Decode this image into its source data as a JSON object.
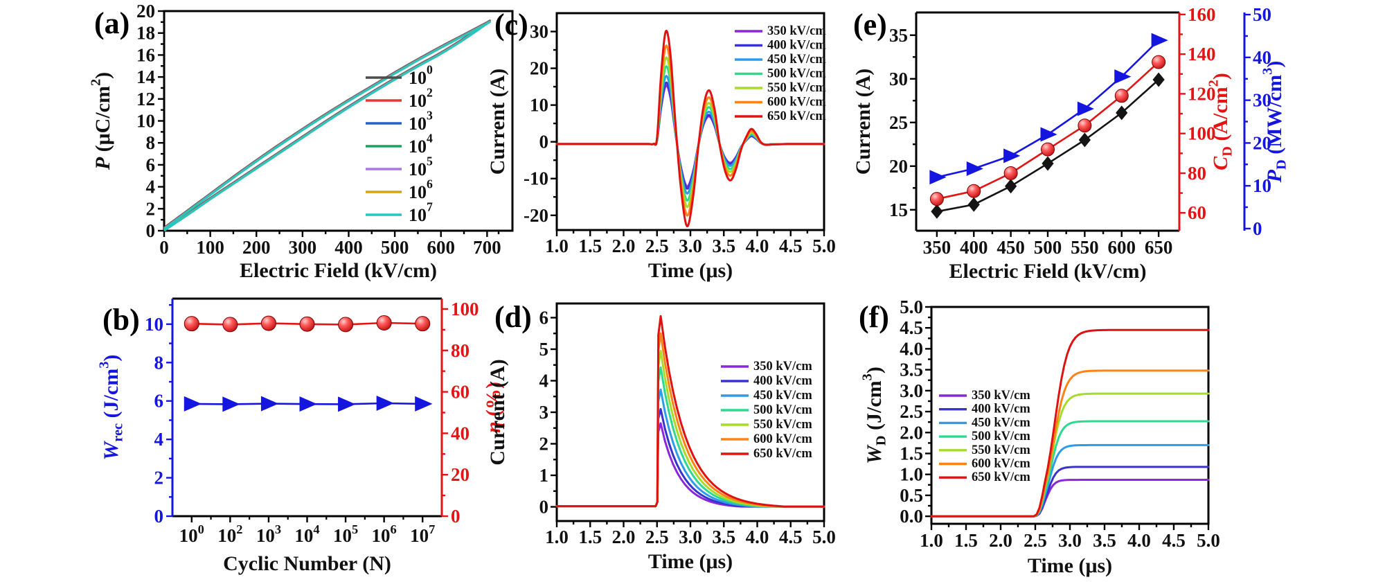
{
  "figure": {
    "description": "Six-panel ferroelectric energy-storage characterization figure",
    "background": "#ffffff",
    "field_legend_labels": [
      "350 kV/cm",
      "400 kV/cm",
      "450 kV/cm",
      "500 kV/cm",
      "550 kV/cm",
      "600 kV/cm",
      "650 kV/cm"
    ],
    "field_colors": [
      "#8C26DD",
      "#3832CE",
      "#2F9BE8",
      "#2BD98F",
      "#A6DC28",
      "#FF8214",
      "#E01111"
    ]
  },
  "chart_data": [
    {
      "panel": "(a)",
      "type": "line",
      "xlabel": "Electric Field (kV/cm)",
      "ylabel_text": "P (μC/cm²)",
      "ylabel_segs": [
        {
          "t": "P",
          "i": true
        },
        {
          "t": " (μC/cm"
        },
        {
          "t": "2",
          "sup": true
        },
        {
          "t": ")"
        }
      ],
      "xlim": [
        0,
        755
      ],
      "ylim": [
        0,
        20
      ],
      "xticks": [
        0,
        100,
        200,
        300,
        400,
        500,
        600,
        700
      ],
      "yticks": [
        0,
        2,
        4,
        6,
        8,
        10,
        12,
        14,
        16,
        18,
        20
      ],
      "legend": {
        "position": "inside-right",
        "items": [
          {
            "label": "10^0",
            "color": "#4D4D4D"
          },
          {
            "label": "10^2",
            "color": "#E8352E"
          },
          {
            "label": "10^3",
            "color": "#2561C9"
          },
          {
            "label": "10^4",
            "color": "#1CA35A"
          },
          {
            "label": "10^5",
            "color": "#A877DF"
          },
          {
            "label": "10^6",
            "color": "#D2A517"
          },
          {
            "label": "10^7",
            "color": "#23C6C0"
          }
        ]
      },
      "series_note": "Unipolar P-E hysteresis loops after 10^0 to 10^7 cycles; all loops overlap",
      "loop_lower": [
        [
          0,
          0
        ],
        [
          50,
          1.4
        ],
        [
          100,
          2.85
        ],
        [
          150,
          4.25
        ],
        [
          200,
          5.65
        ],
        [
          250,
          7.05
        ],
        [
          300,
          8.45
        ],
        [
          350,
          9.85
        ],
        [
          400,
          11.2
        ],
        [
          450,
          12.5
        ],
        [
          500,
          13.75
        ],
        [
          550,
          14.95
        ],
        [
          600,
          16.1
        ],
        [
          650,
          17.4
        ],
        [
          700,
          18.85
        ]
      ],
      "loop_upper": [
        [
          700,
          18.85
        ],
        [
          650,
          17.75
        ],
        [
          600,
          16.65
        ],
        [
          550,
          15.5
        ],
        [
          500,
          14.3
        ],
        [
          450,
          13.05
        ],
        [
          400,
          11.8
        ],
        [
          350,
          10.5
        ],
        [
          300,
          9.15
        ],
        [
          250,
          7.75
        ],
        [
          200,
          6.3
        ],
        [
          150,
          4.8
        ],
        [
          100,
          3.25
        ],
        [
          50,
          1.7
        ],
        [
          0,
          0.15
        ]
      ]
    },
    {
      "panel": "(b)",
      "type": "scatter-line",
      "xlabel": "Cyclic Number (N)",
      "x_tick_labels": [
        "10^0",
        "10^2",
        "10^3",
        "10^4",
        "10^5",
        "10^6",
        "10^7"
      ],
      "left_axis": {
        "label_text": "W_rec (J/cm³)",
        "label_segs": [
          {
            "t": "W",
            "i": true
          },
          {
            "t": "rec",
            "sub": true
          },
          {
            "t": " (J/cm"
          },
          {
            "t": "3",
            "sup": true
          },
          {
            "t": ")"
          }
        ],
        "color": "#1515E0",
        "lim": [
          0,
          11.33
        ],
        "ticks": [
          0,
          2,
          4,
          6,
          8,
          10
        ]
      },
      "right_axis": {
        "label_text": "η (%)",
        "label_segs": [
          {
            "t": "η",
            "i": true
          },
          {
            "t": " (%)"
          }
        ],
        "color": "#E41414",
        "lim": [
          0,
          105
        ],
        "ticks": [
          0,
          20,
          40,
          60,
          80,
          100
        ]
      },
      "series": [
        {
          "name": "W_rec (J/cm³)",
          "axis": "left",
          "marker": "triangle-right",
          "color": "#1515E0",
          "values": [
            5.85,
            5.83,
            5.86,
            5.84,
            5.83,
            5.88,
            5.85
          ]
        },
        {
          "name": "η (%)",
          "axis": "right",
          "marker": "sphere",
          "color": "#E41414",
          "values": [
            92.9,
            92.5,
            93.1,
            92.7,
            92.5,
            93.3,
            92.9
          ]
        }
      ]
    },
    {
      "panel": "(c)",
      "type": "line",
      "xlabel": "Time (μs)",
      "ylabel_text": "Current (A)",
      "xlim": [
        1,
        5
      ],
      "ylim": [
        -24,
        35
      ],
      "xticks": [
        1,
        1.5,
        2,
        2.5,
        3,
        3.5,
        4,
        4.5,
        5
      ],
      "xtick_labels": [
        "1.0",
        "1.5",
        "2.0",
        "2.5",
        "3.0",
        "3.5",
        "4.0",
        "4.5",
        "5.0"
      ],
      "yticks": [
        -20,
        -10,
        0,
        10,
        20,
        30
      ],
      "fields_kvcm": [
        350,
        400,
        450,
        500,
        550,
        600,
        650
      ],
      "legend_labels": [
        "350 kV/cm",
        "400 kV/cm",
        "450 kV/cm",
        "500 kV/cm",
        "550 kV/cm",
        "600 kV/cm",
        "650 kV/cm"
      ],
      "colors": [
        "#8C26DD",
        "#3832CE",
        "#2F9BE8",
        "#2BD98F",
        "#A6DC28",
        "#FF8214",
        "#E01111"
      ],
      "peak_currents_A": [
        15.2,
        16.0,
        17.8,
        20.4,
        22.8,
        26.0,
        30.0
      ],
      "baseline_A": -0.6,
      "series_note": "Underdamped discharge current oscillations starting at 2.5 μs",
      "waveform_650": [
        [
          1,
          -0.6
        ],
        [
          1.5,
          -0.6
        ],
        [
          2,
          -0.6
        ],
        [
          2.35,
          -0.6
        ],
        [
          2.45,
          -0.55
        ],
        [
          2.5,
          1
        ],
        [
          2.56,
          18
        ],
        [
          2.63,
          30
        ],
        [
          2.7,
          24
        ],
        [
          2.78,
          4
        ],
        [
          2.86,
          -13
        ],
        [
          2.95,
          -23
        ],
        [
          3.04,
          -15
        ],
        [
          3.12,
          -1
        ],
        [
          3.2,
          10
        ],
        [
          3.28,
          14
        ],
        [
          3.36,
          9
        ],
        [
          3.44,
          -1
        ],
        [
          3.52,
          -8
        ],
        [
          3.6,
          -10.5
        ],
        [
          3.68,
          -7.5
        ],
        [
          3.76,
          -2
        ],
        [
          3.84,
          1.5
        ],
        [
          3.91,
          3.5
        ],
        [
          3.98,
          2.2
        ],
        [
          4.05,
          0
        ],
        [
          4.12,
          -0.8
        ],
        [
          4.25,
          -0.7
        ],
        [
          4.5,
          -0.6
        ],
        [
          4.75,
          -0.6
        ],
        [
          5,
          -0.6
        ]
      ]
    },
    {
      "panel": "(d)",
      "type": "line",
      "xlabel": "Time (μs)",
      "ylabel_text": "Current (A)",
      "xlim": [
        1,
        5
      ],
      "ylim": [
        -0.45,
        6.45
      ],
      "xticks": [
        1,
        1.5,
        2,
        2.5,
        3,
        3.5,
        4,
        4.5,
        5
      ],
      "xtick_labels": [
        "1.0",
        "1.5",
        "2.0",
        "2.5",
        "3.0",
        "3.5",
        "4.0",
        "4.5",
        "5.0"
      ],
      "yticks": [
        0,
        1,
        2,
        3,
        4,
        5,
        6
      ],
      "fields_kvcm": [
        350,
        400,
        450,
        500,
        550,
        600,
        650
      ],
      "legend_labels": [
        "350 kV/cm",
        "400 kV/cm",
        "450 kV/cm",
        "500 kV/cm",
        "550 kV/cm",
        "600 kV/cm",
        "650 kV/cm"
      ],
      "colors": [
        "#8C26DD",
        "#3832CE",
        "#2F9BE8",
        "#2BD98F",
        "#A6DC28",
        "#FF8214",
        "#E01111"
      ],
      "peak_currents_A": [
        2.65,
        3.1,
        3.72,
        4.42,
        4.95,
        5.5,
        6.05
      ],
      "decay_tau_us": [
        0.285,
        0.3,
        0.315,
        0.33,
        0.345,
        0.36,
        0.375
      ],
      "pulse_start_us": 2.5,
      "series_note": "Overdamped RC discharge current pulses starting at 2.5 μs"
    },
    {
      "panel": "(e)",
      "type": "scatter-line",
      "xlabel": "Electric Field (kV/cm)",
      "x": [
        350,
        400,
        450,
        500,
        550,
        600,
        650
      ],
      "xlim": [
        322,
        678
      ],
      "xticks": [
        350,
        400,
        450,
        500,
        550,
        600,
        650
      ],
      "left_axis": {
        "label_text": "Current (A)",
        "color": "#141414",
        "lim": [
          12.6,
          37.6
        ],
        "ticks": [
          15,
          20,
          25,
          30,
          35
        ]
      },
      "right_axis1": {
        "label_text": "C_D (A/cm²)",
        "label_segs": [
          {
            "t": "C",
            "i": true
          },
          {
            "t": "D",
            "sub": true
          },
          {
            "t": " (A/cm"
          },
          {
            "t": "2",
            "sup": true
          },
          {
            "t": ")"
          }
        ],
        "color": "#E41414",
        "lim": [
          51,
          161
        ],
        "ticks": [
          60,
          80,
          100,
          120,
          140,
          160
        ]
      },
      "right_axis2": {
        "label_text": "P_D (MW/cm³)",
        "label_segs": [
          {
            "t": "P",
            "i": true
          },
          {
            "t": "D",
            "sub": true
          },
          {
            "t": " (MW/cm"
          },
          {
            "t": "3",
            "sup": true
          },
          {
            "t": ")"
          }
        ],
        "color": "#1515E0",
        "lim": [
          -0.5,
          50.5
        ],
        "ticks": [
          0,
          10,
          20,
          30,
          40,
          50
        ]
      },
      "series": [
        {
          "name": "Current (A)",
          "axis": "left",
          "marker": "diamond",
          "color": "#141414",
          "values": [
            14.8,
            15.6,
            17.7,
            20.3,
            23.0,
            26.1,
            29.9
          ]
        },
        {
          "name": "C_D (A/cm²)",
          "axis": "right1",
          "marker": "sphere",
          "color": "#E41414",
          "values": [
            67,
            71,
            80,
            92,
            104,
            119,
            136
          ]
        },
        {
          "name": "P_D (MW/cm³)",
          "axis": "right2",
          "marker": "triangle-right",
          "color": "#1515E0",
          "values": [
            12,
            14,
            17,
            22,
            28,
            35.5,
            44
          ]
        }
      ]
    },
    {
      "panel": "(f)",
      "type": "line",
      "xlabel": "Time (μs)",
      "ylabel_text": "W_D (J/cm³)",
      "ylabel_segs": [
        {
          "t": "W",
          "i": true
        },
        {
          "t": "D",
          "sub": true
        },
        {
          "t": " (J/cm"
        },
        {
          "t": "3",
          "sup": true
        },
        {
          "t": ")"
        }
      ],
      "xlim": [
        1,
        5
      ],
      "ylim": [
        -0.18,
        5
      ],
      "xticks": [
        1,
        1.5,
        2,
        2.5,
        3,
        3.5,
        4,
        4.5,
        5
      ],
      "xtick_labels": [
        "1.0",
        "1.5",
        "2.0",
        "2.5",
        "3.0",
        "3.5",
        "4.0",
        "4.5",
        "5.0"
      ],
      "yticks": [
        0,
        0.5,
        1,
        1.5,
        2,
        2.5,
        3,
        3.5,
        4,
        4.5,
        5
      ],
      "ytick_labels": [
        "0.0",
        "0.5",
        "1.0",
        "1.5",
        "2.0",
        "2.5",
        "3.0",
        "3.5",
        "4.0",
        "4.5",
        "5.0"
      ],
      "fields_kvcm": [
        350,
        400,
        450,
        500,
        550,
        600,
        650
      ],
      "legend_labels": [
        "350 kV/cm",
        "400 kV/cm",
        "450 kV/cm",
        "500 kV/cm",
        "550 kV/cm",
        "600 kV/cm",
        "650 kV/cm"
      ],
      "colors": [
        "#8C26DD",
        "#3832CE",
        "#2F9BE8",
        "#2BD98F",
        "#A6DC28",
        "#FF8214",
        "#E01111"
      ],
      "plateaus_J_cm3": [
        0.87,
        1.18,
        1.7,
        2.27,
        2.93,
        3.48,
        4.45
      ],
      "rise_start_us": 2.5,
      "sigmoid_center": [
        2.66,
        2.68,
        2.7,
        2.72,
        2.74,
        2.76,
        2.78
      ],
      "sigmoid_width": [
        0.055,
        0.062,
        0.068,
        0.075,
        0.082,
        0.088,
        0.095
      ],
      "series_note": "Discharged energy density vs time, saturating plateaus per field"
    }
  ]
}
